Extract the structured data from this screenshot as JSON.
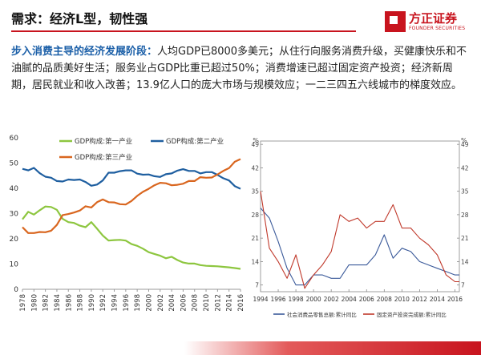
{
  "header": {
    "title": "需求：经济L型，韧性强",
    "logo_cn": "方正证券",
    "logo_en": "FOUNDER SECURITIES"
  },
  "body": {
    "highlight": "步入消费主导的经济发展阶段：",
    "text": "人均GDP已8000多美元；从住行向服务消费升级，买健康快乐和不油腻的品质美好生活；服务业占GDP比重已超过50%；消费增速已超过固定资产投资；经济新周期，居民就业和收入改善；13.9亿人口的庞大市场与规模效应；一二三四五六线城市的梯度效应。"
  },
  "colors": {
    "green": "#8dc63f",
    "blue": "#1f5fa0",
    "orange": "#d9661f",
    "navy": "#3b5a9a",
    "red": "#c0392b",
    "accent": "#c8141e"
  },
  "chart_data": [
    {
      "type": "line",
      "title": "",
      "xlabel": "",
      "ylabel": "",
      "ylim": [
        0,
        60
      ],
      "yticks": [
        0,
        10,
        20,
        30,
        40,
        50,
        60
      ],
      "x": [
        1978,
        1979,
        1980,
        1981,
        1982,
        1983,
        1984,
        1985,
        1986,
        1987,
        1988,
        1989,
        1990,
        1991,
        1992,
        1993,
        1994,
        1995,
        1996,
        1997,
        1998,
        1999,
        2000,
        2001,
        2002,
        2003,
        2004,
        2005,
        2006,
        2007,
        2008,
        2009,
        2010,
        2011,
        2012,
        2013,
        2014,
        2015,
        2016
      ],
      "xtick_labels": [
        "1978",
        "1980",
        "1982",
        "1984",
        "1986",
        "1988",
        "1990",
        "1992",
        "1994",
        "1996",
        "1998",
        "2000",
        "2002",
        "2004",
        "2006",
        "2008",
        "2010",
        "2012",
        "2014",
        "2016"
      ],
      "legend": [
        "GDP构成:第一产业",
        "GDP构成:第二产业",
        "GDP构成:第三产业"
      ],
      "series": [
        {
          "name": "GDP构成:第一产业",
          "color": "#8dc63f",
          "values": [
            27.7,
            30.7,
            29.6,
            31.3,
            32.8,
            32.6,
            31.5,
            27.9,
            26.6,
            26.3,
            25.2,
            24.6,
            26.6,
            24.0,
            21.3,
            19.3,
            19.5,
            19.6,
            19.3,
            17.9,
            17.2,
            16.1,
            14.7,
            14.0,
            13.3,
            12.3,
            12.9,
            11.6,
            10.6,
            10.2,
            10.2,
            9.6,
            9.3,
            9.2,
            9.1,
            8.9,
            8.7,
            8.4,
            8.1
          ]
        },
        {
          "name": "GDP构成:第二产业",
          "color": "#1f5fa0",
          "values": [
            47.7,
            47.1,
            48.1,
            46.0,
            44.6,
            44.2,
            42.9,
            42.7,
            43.5,
            43.3,
            43.5,
            42.5,
            41.0,
            41.5,
            43.1,
            46.2,
            46.2,
            46.8,
            47.1,
            47.1,
            45.8,
            45.4,
            45.5,
            44.8,
            44.5,
            45.6,
            45.9,
            47.0,
            47.6,
            46.9,
            46.9,
            45.9,
            46.4,
            46.4,
            45.3,
            44.0,
            43.1,
            40.9,
            39.8
          ]
        },
        {
          "name": "GDP构成:第三产业",
          "color": "#d9661f",
          "values": [
            24.6,
            22.3,
            22.3,
            22.7,
            22.6,
            23.2,
            25.5,
            29.4,
            29.8,
            30.4,
            31.2,
            32.9,
            32.4,
            34.5,
            35.6,
            34.5,
            34.4,
            33.7,
            33.6,
            35.0,
            37.0,
            38.6,
            39.8,
            41.2,
            42.2,
            42.0,
            41.2,
            41.4,
            41.8,
            42.9,
            42.9,
            44.4,
            44.2,
            44.3,
            45.5,
            46.9,
            48.0,
            50.5,
            51.6
          ]
        }
      ]
    },
    {
      "type": "line",
      "title": "",
      "ylabel_left": "%",
      "ylabel_right": "%",
      "ylim": [
        5,
        50
      ],
      "yticks": [
        7,
        14,
        21,
        28,
        35,
        42,
        49
      ],
      "x": [
        1994,
        1995,
        1996,
        1997,
        1998,
        1999,
        2000,
        2001,
        2002,
        2003,
        2004,
        2005,
        2006,
        2007,
        2008,
        2009,
        2010,
        2011,
        2012,
        2013,
        2014,
        2015,
        2016,
        2016.5
      ],
      "xtick_labels": [
        "1994",
        "1996",
        "1998",
        "2000",
        "2002",
        "2004",
        "2006",
        "2008",
        "2010",
        "2012",
        "2014",
        "2016"
      ],
      "legend": [
        "社会消费品零售总额:累计同比",
        "固定资产投资完成额:累计同比"
      ],
      "series": [
        {
          "name": "社会消费品零售总额:累计同比",
          "color": "#3b5a9a",
          "values": [
            30,
            27,
            20,
            12,
            7,
            7,
            10,
            10,
            9,
            9,
            13,
            13,
            13,
            16,
            22,
            15,
            18,
            17,
            14,
            13,
            12,
            11,
            10,
            10
          ]
        },
        {
          "name": "固定资产投资完成额:累计同比",
          "color": "#c0392b",
          "values": [
            35,
            18,
            14,
            9,
            16,
            6,
            10,
            13,
            17,
            28,
            26,
            27,
            24,
            26,
            26,
            31,
            24,
            24,
            21,
            19,
            16,
            10,
            8,
            8
          ]
        }
      ]
    }
  ]
}
